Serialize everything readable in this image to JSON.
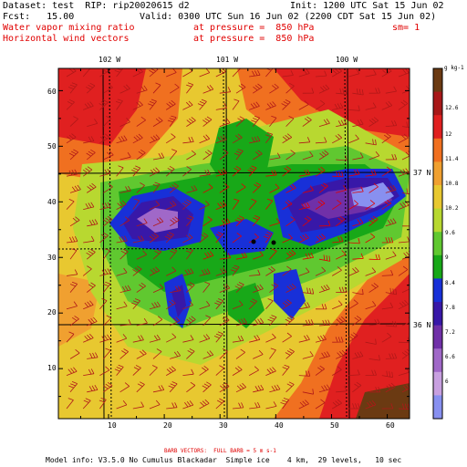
{
  "header": {
    "dataset_line": "Dataset: test  RIP: rip20020615 d2",
    "init_line": "Init: 1200 UTC Sat 15 Jun 02",
    "fcst_line": "Fcst:   15.00",
    "valid_line": "Valid: 0300 UTC Sun 16 Jun 02 (2200 CDT Sat 15 Jun 02)",
    "field1_name": "Water vapor mixing ratio",
    "field1_level": "at pressure =  850 hPa",
    "field1_smoothing": "sm= 1",
    "field2_name": "Horizontal wind vectors",
    "field2_level": "at pressure =  850 hPa"
  },
  "map": {
    "longitude_labels": [
      "102 W",
      "101 W",
      "100 W"
    ],
    "latitude_labels": [
      "37 N",
      "36 N"
    ],
    "x_ticks": [
      "10",
      "20",
      "30",
      "40",
      "50",
      "60"
    ],
    "y_ticks": [
      "10",
      "20",
      "30",
      "40",
      "50",
      "60"
    ],
    "x_range": [
      1,
      64
    ],
    "y_range": [
      1,
      64
    ],
    "stations_marked": 2
  },
  "colorbar": {
    "unit_label": "g kg-1",
    "tick_labels": [
      "12.6",
      "12",
      "11.4",
      "10.8",
      "10.2",
      "9.6",
      "9",
      "8.4",
      "7.8",
      "7.2",
      "6.6",
      "6"
    ],
    "colors": [
      "#6b3a12",
      "#a81818",
      "#e02020",
      "#f07020",
      "#f0a030",
      "#e8c830",
      "#b8d830",
      "#60c830",
      "#18a818",
      "#1830d8",
      "#3818a8",
      "#7030a8",
      "#a068c8",
      "#c8a0e0",
      "#8890f0"
    ]
  },
  "footer": {
    "barb_note": "BARB VECTORS:  FULL BARB = 5 m s-1",
    "model_info": "Model info: V3.5.0 No Cumulus Blackadar  Simple ice    4 km,  29 levels,   10 sec"
  }
}
